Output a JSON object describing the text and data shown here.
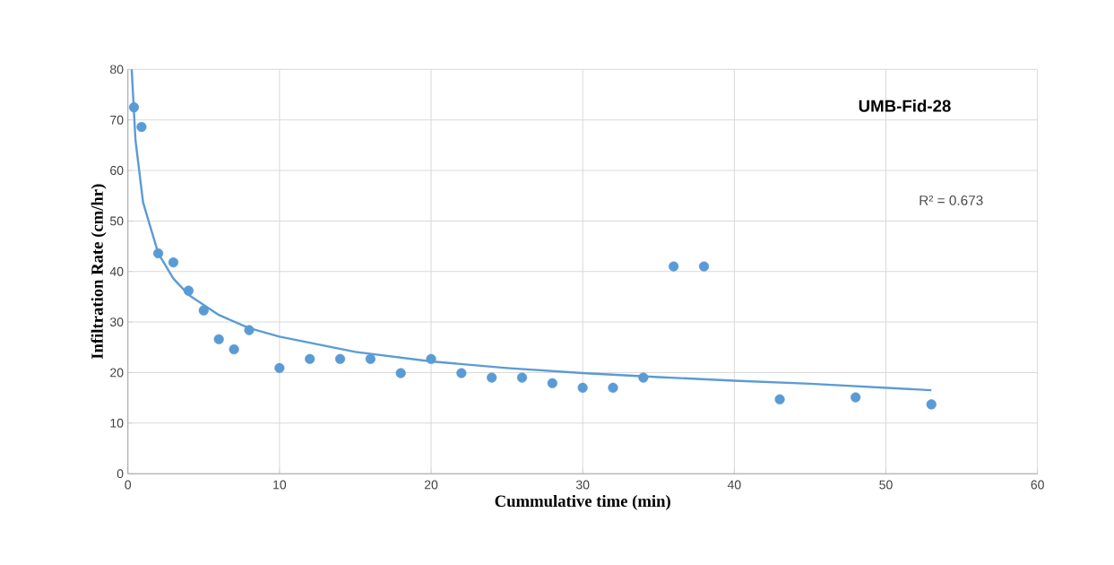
{
  "chart_data": {
    "type": "scatter",
    "xlabel": "Cummulative time (min)",
    "ylabel": "Infiltration Rate (cm/hr)",
    "xlim": [
      0,
      60
    ],
    "ylim": [
      0,
      80
    ],
    "xticks": [
      0,
      10,
      20,
      30,
      40,
      50,
      60
    ],
    "yticks": [
      0,
      10,
      20,
      30,
      40,
      50,
      60,
      70,
      80
    ],
    "grid": true,
    "annotations": [
      "UMB-Fid-28",
      "R² = 0.673"
    ],
    "series": [
      {
        "marker": "circle",
        "color": "#5b9bd5",
        "x": [
          0.4,
          0.9,
          2,
          3,
          4,
          5,
          6,
          7,
          8,
          10,
          12,
          14,
          16,
          18,
          20,
          22,
          24,
          26,
          28,
          30,
          32,
          34,
          36,
          38,
          43,
          48,
          53
        ],
        "values": [
          72.5,
          68.6,
          43.6,
          41.8,
          36.2,
          32.3,
          26.6,
          24.6,
          28.4,
          20.9,
          22.7,
          22.7,
          22.7,
          19.9,
          22.7,
          19.9,
          19.0,
          19.0,
          17.9,
          17.0,
          17.0,
          19.0,
          41.0,
          41.0,
          14.7,
          15.1,
          13.7
        ]
      },
      {
        "type": "line",
        "marker": "none",
        "color": "#5b9bd5",
        "x": [
          0.25,
          0.5,
          1,
          2,
          3,
          4,
          6,
          8,
          10,
          15,
          20,
          25,
          30,
          35,
          40,
          45,
          53
        ],
        "values": [
          80,
          66.0,
          53.7,
          43.6,
          38.6,
          35.4,
          31.4,
          28.8,
          27.1,
          24.1,
          22.2,
          20.9,
          19.9,
          19.1,
          18.4,
          17.8,
          16.5
        ]
      }
    ]
  }
}
